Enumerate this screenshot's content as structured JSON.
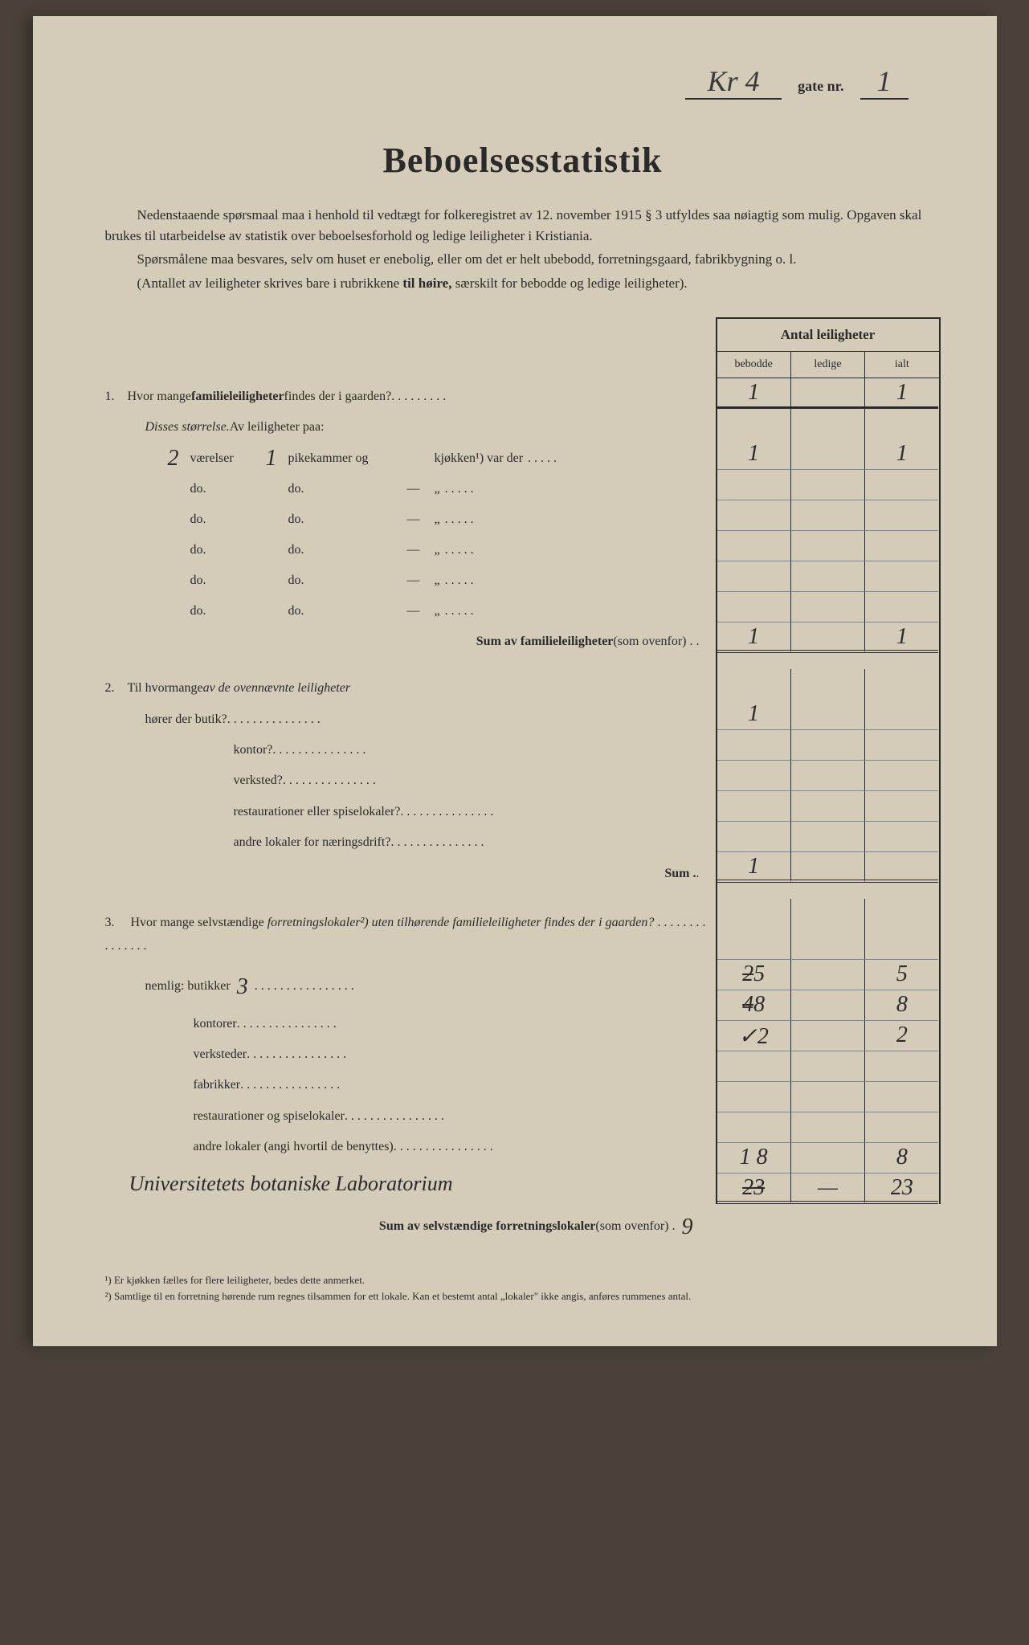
{
  "header": {
    "street_handwritten": "Kr 4",
    "gate_label": "gate nr.",
    "gate_number": "1"
  },
  "title": "Beboelsesstatistik",
  "intro": {
    "p1_a": "Nedenstaaende spørsmaal maa i henhold til vedtægt for folkeregistret av 12. november 1915 § 3 utfyldes saa nøiagtig som mulig.  Opgaven skal brukes til utarbeidelse av statistik over beboelsesforhold og ledige leiligheter i Kristiania.",
    "p2_a": "Spørsmålene maa besvares, selv om huset er enebolig, eller om det er helt ubebodd, forretningsgaard, fabrikbygning o. l.",
    "p3_a": "(Antallet av leiligheter skrives bare i rubrikkene ",
    "p3_b": "til høire,",
    "p3_c": " særskilt for bebodde og ledige leiligheter)."
  },
  "table_header": {
    "title": "Antal leiligheter",
    "col1": "bebodde",
    "col2": "ledige",
    "col3": "ialt"
  },
  "q1": {
    "num": "1.",
    "text_a": "Hvor mange ",
    "text_b": "familieleiligheter",
    "text_c": " findes der i gaarden?",
    "bebodde": "1",
    "ledige": "",
    "ialt": "1"
  },
  "disses": {
    "label_a": "Disses størrelse.",
    "label_b": "  Av leiligheter paa:"
  },
  "size_rows": [
    {
      "vaer": "2",
      "vaer_label": "værelser",
      "pike": "1",
      "pike_label": "pikekammer og",
      "kjok": "",
      "kjok_label": "kjøkken¹) var der",
      "bebodde": "1",
      "ledige": "",
      "ialt": "1"
    },
    {
      "vaer": "",
      "vaer_label": "do.",
      "pike": "",
      "pike_label": "do.",
      "kjok": "—",
      "kjok_label": "„",
      "bebodde": "",
      "ledige": "",
      "ialt": ""
    },
    {
      "vaer": "",
      "vaer_label": "do.",
      "pike": "",
      "pike_label": "do.",
      "kjok": "—",
      "kjok_label": "„",
      "bebodde": "",
      "ledige": "",
      "ialt": ""
    },
    {
      "vaer": "",
      "vaer_label": "do.",
      "pike": "",
      "pike_label": "do.",
      "kjok": "—",
      "kjok_label": "„",
      "bebodde": "",
      "ledige": "",
      "ialt": ""
    },
    {
      "vaer": "",
      "vaer_label": "do.",
      "pike": "",
      "pike_label": "do.",
      "kjok": "—",
      "kjok_label": "„",
      "bebodde": "",
      "ledige": "",
      "ialt": ""
    },
    {
      "vaer": "",
      "vaer_label": "do.",
      "pike": "",
      "pike_label": "do.",
      "kjok": "—",
      "kjok_label": "„",
      "bebodde": "",
      "ledige": "",
      "ialt": ""
    }
  ],
  "sum1": {
    "label": "Sum av familieleiligheter ",
    "label_b": "(som ovenfor) . .",
    "bebodde": "1",
    "ledige": "",
    "ialt": "1"
  },
  "q2": {
    "num": "2.",
    "text_a": "Til hvormange ",
    "text_b": "av de ovennævnte leiligheter",
    "rows": [
      {
        "label": "hører der butik?",
        "bebodde": "1",
        "ledige": "",
        "ialt": ""
      },
      {
        "label": "kontor?",
        "bebodde": "",
        "ledige": "",
        "ialt": ""
      },
      {
        "label": "verksted?",
        "bebodde": "",
        "ledige": "",
        "ialt": ""
      },
      {
        "label": "restaurationer eller spiselokaler?",
        "bebodde": "",
        "ledige": "",
        "ialt": ""
      },
      {
        "label": "andre lokaler for næringsdrift?",
        "bebodde": "",
        "ledige": "",
        "ialt": ""
      }
    ],
    "sum_label": "Sum .",
    "sum_bebodde": "1"
  },
  "q3": {
    "num": "3.",
    "text_a": "Hvor mange selvstændige ",
    "text_b": "forretningslokaler²)",
    "text_c": " uten tilhørende familieleiligheter findes der i gaarden?",
    "rows": [
      {
        "label": "nemlig: butikker",
        "hand": "3",
        "bebodde_struck": "2",
        "bebodde": "5",
        "ledige": "",
        "ialt": "5"
      },
      {
        "label": "kontorer",
        "hand": "",
        "bebodde_struck": "4",
        "bebodde": "8",
        "ledige": "",
        "ialt": "8"
      },
      {
        "label": "verksteder",
        "hand": "",
        "bebodde": "✓2",
        "ledige": "",
        "ialt": "2"
      },
      {
        "label": "fabrikker",
        "hand": "",
        "bebodde": "",
        "ledige": "",
        "ialt": ""
      },
      {
        "label": "restaurationer og spiselokaler",
        "hand": "",
        "bebodde": "",
        "ledige": "",
        "ialt": ""
      },
      {
        "label": "andre lokaler (angi hvortil de benyttes)",
        "hand": "",
        "bebodde": "",
        "ledige": "",
        "ialt": ""
      }
    ],
    "handwritten_line": "Universitetets botaniske Laboratorium",
    "hand_bebodde": "1 8",
    "hand_ialt": "8",
    "sum_label": "Sum av selvstændige forretningslokaler ",
    "sum_label_b": "(som ovenfor) .",
    "sum_prefix": "9",
    "sum_bebodde": "23",
    "sum_ledige": "—",
    "sum_ialt": "23"
  },
  "footnotes": {
    "f1": "¹)  Er kjøkken fælles for flere leiligheter, bedes dette anmerket.",
    "f2": "²)  Samtlige til en forretning hørende rum regnes tilsammen for ett lokale.  Kan et bestemt antal „lokaler\" ikke angis, anføres rummenes antal."
  }
}
